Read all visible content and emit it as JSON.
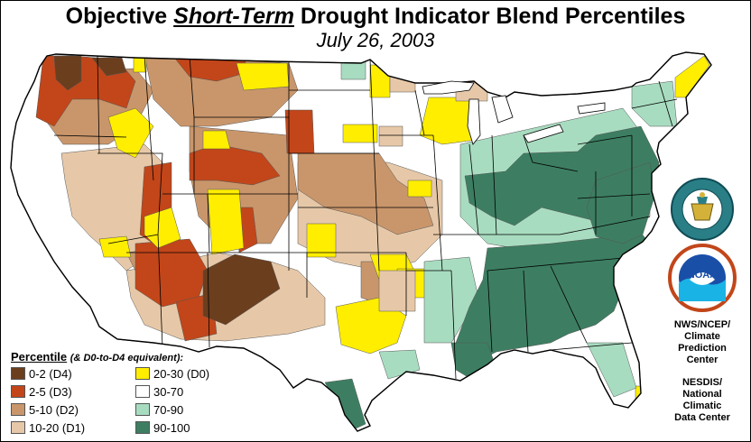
{
  "title": {
    "prefix": "Objective ",
    "emphasis": "Short-Term",
    "suffix": " Drought Indicator Blend Percentiles"
  },
  "subtitle": "July 26, 2003",
  "legend": {
    "title": "Percentile",
    "subtitle": "(& D0-to-D4 equivalent):",
    "items": [
      {
        "label": "0-2 (D4)",
        "color": "#6b3e1e"
      },
      {
        "label": "2-5 (D3)",
        "color": "#c2461a"
      },
      {
        "label": "5-10 (D2)",
        "color": "#c9966b"
      },
      {
        "label": "10-20 (D1)",
        "color": "#e6c8a8"
      },
      {
        "label": "20-30 (D0)",
        "color": "#ffee00"
      },
      {
        "label": "30-70",
        "color": "#ffffff"
      },
      {
        "label": "70-90",
        "color": "#a8dcc0"
      },
      {
        "label": "90-100",
        "color": "#3d7e62"
      }
    ]
  },
  "credits": {
    "noaa_seal_text": "NOAA",
    "ncep": [
      "NWS/NCEP/",
      "Climate",
      "Prediction",
      "Center"
    ],
    "nesdis": [
      "NESDIS/",
      "National",
      "Climatic",
      "Data Center"
    ]
  }
}
